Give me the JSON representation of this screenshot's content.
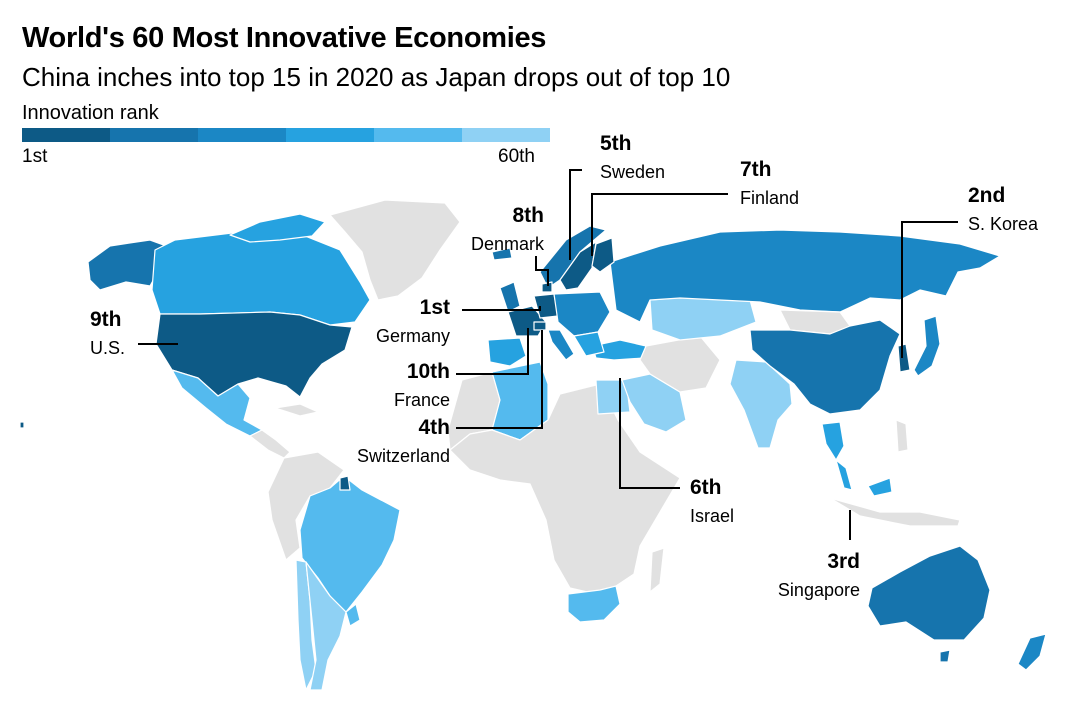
{
  "title": "World's 60 Most Innovative Economies",
  "subtitle": "China inches into top 15 in 2020 as Japan drops out of top 10",
  "legend": {
    "title": "Innovation rank",
    "min_label": "1st",
    "max_label": "60th",
    "colors": [
      "#0d5a86",
      "#1674ad",
      "#1b87c5",
      "#26a2e0",
      "#54baee",
      "#8fd1f4"
    ]
  },
  "colors": {
    "non_ranked": "#e1e1e1",
    "ocean": "#ffffff",
    "border": "#ffffff",
    "leader": "#000000"
  },
  "top10": [
    {
      "rank": "1st",
      "country": "Germany"
    },
    {
      "rank": "2nd",
      "country": "S. Korea"
    },
    {
      "rank": "3rd",
      "country": "Singapore"
    },
    {
      "rank": "4th",
      "country": "Switzerland"
    },
    {
      "rank": "5th",
      "country": "Sweden"
    },
    {
      "rank": "6th",
      "country": "Israel"
    },
    {
      "rank": "7th",
      "country": "Finland"
    },
    {
      "rank": "8th",
      "country": "Denmark"
    },
    {
      "rank": "9th",
      "country": "U.S."
    },
    {
      "rank": "10th",
      "country": "France"
    }
  ]
}
